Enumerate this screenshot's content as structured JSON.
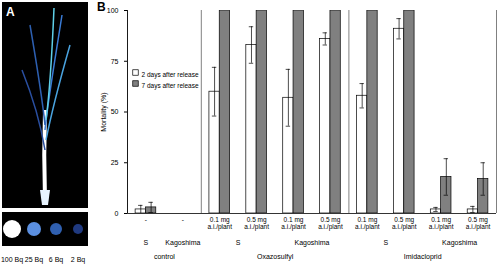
{
  "panel_a": {
    "label": "A",
    "scale_labels": [
      "100 Bq",
      "25 Bq",
      "6 Bq",
      "2 Bq"
    ]
  },
  "chart_data": {
    "type": "bar",
    "panel_label": "B",
    "y_label": "Mortality (%)",
    "categories": [
      "-",
      "-",
      "0.1 mg a.i./plant",
      "0.5 mg a.i./plant",
      "0.1 mg a.i./plant",
      "0.5 mg a.i./plant",
      "0.1 mg a.i./plant",
      "0.5 mg a.i./plant",
      "0.1 mg a.i./plant",
      "0.5 mg a.i./plant"
    ],
    "strains": [
      "S",
      "Kagoshima",
      "S",
      "S",
      "Kagoshima",
      "Kagoshima",
      "S",
      "S",
      "Kagoshima",
      "Kagoshima"
    ],
    "treatments": [
      "control",
      "control",
      "Oxazosulfyl",
      "Oxazosulfyl",
      "Oxazosulfyl",
      "Oxazosulfyl",
      "Imidacloprid",
      "Imidacloprid",
      "Imidacloprid",
      "Imidacloprid"
    ],
    "series": [
      {
        "name": "2 days after release",
        "color": "#ffffff",
        "values": [
          2,
          null,
          60,
          83,
          57,
          86,
          58,
          91,
          2,
          2
        ],
        "errors": [
          2,
          null,
          12,
          9,
          14,
          3,
          6,
          5,
          1,
          1.5
        ]
      },
      {
        "name": "7 days after release",
        "color": "#808080",
        "values": [
          3,
          null,
          100,
          100,
          100,
          100,
          100,
          100,
          18,
          17
        ],
        "errors": [
          2.5,
          null,
          null,
          null,
          null,
          null,
          null,
          null,
          9,
          8
        ]
      }
    ],
    "ylim": [
      0,
      100
    ],
    "yticks": [
      0,
      25,
      50,
      75,
      100
    ],
    "legend": "top-left",
    "grid": false
  }
}
